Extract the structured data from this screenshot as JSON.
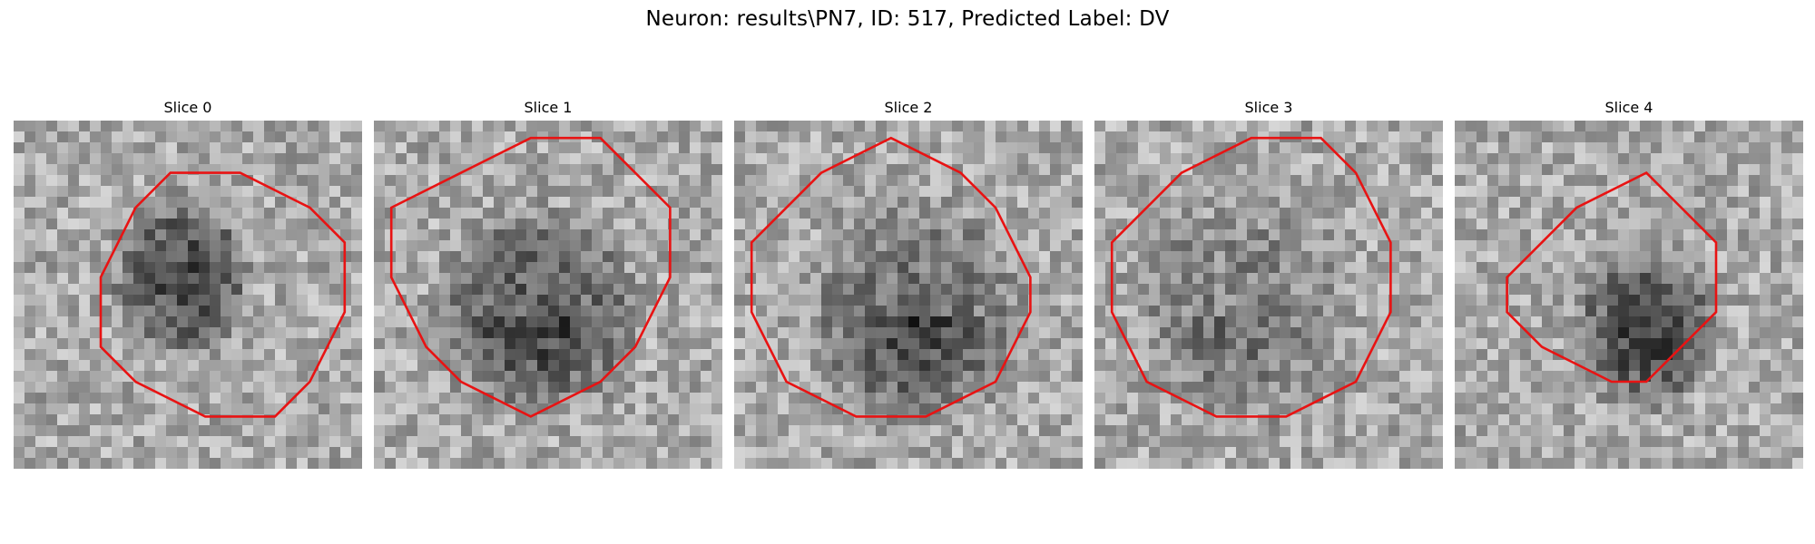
{
  "figure": {
    "title": "Neuron: results\\PN7, ID: 517, Predicted Label: DV",
    "contour_color": "#e81313"
  },
  "panels": [
    {
      "title": "Slice 0",
      "contour": [
        [
          4.5,
          1.5
        ],
        [
          6.5,
          1.5
        ],
        [
          8.5,
          2.5
        ],
        [
          9.5,
          3.5
        ],
        [
          9.5,
          5.5
        ],
        [
          8.5,
          7.5
        ],
        [
          7.5,
          8.5
        ],
        [
          5.5,
          8.5
        ],
        [
          3.5,
          7.5
        ],
        [
          2.5,
          6.5
        ],
        [
          2.5,
          4.5
        ],
        [
          3.5,
          2.5
        ]
      ]
    },
    {
      "title": "Slice 1",
      "contour": [
        [
          4.5,
          0.5
        ],
        [
          6.5,
          0.5
        ],
        [
          8.5,
          2.5
        ],
        [
          8.5,
          4.5
        ],
        [
          7.5,
          6.5
        ],
        [
          6.5,
          7.5
        ],
        [
          4.5,
          8.5
        ],
        [
          2.5,
          7.5
        ],
        [
          1.5,
          6.5
        ],
        [
          0.5,
          4.5
        ],
        [
          0.5,
          2.5
        ],
        [
          2.5,
          1.5
        ]
      ]
    },
    {
      "title": "Slice 2",
      "contour": [
        [
          4.5,
          0.5
        ],
        [
          6.5,
          1.5
        ],
        [
          7.5,
          2.5
        ],
        [
          8.5,
          4.5
        ],
        [
          8.5,
          5.5
        ],
        [
          7.5,
          7.5
        ],
        [
          5.5,
          8.5
        ],
        [
          3.5,
          8.5
        ],
        [
          1.5,
          7.5
        ],
        [
          0.5,
          5.5
        ],
        [
          0.5,
          3.5
        ],
        [
          2.5,
          1.5
        ]
      ]
    },
    {
      "title": "Slice 3",
      "contour": [
        [
          4.5,
          0.5
        ],
        [
          6.5,
          0.5
        ],
        [
          7.5,
          1.5
        ],
        [
          8.5,
          3.5
        ],
        [
          8.5,
          5.5
        ],
        [
          7.5,
          7.5
        ],
        [
          5.5,
          8.5
        ],
        [
          3.5,
          8.5
        ],
        [
          1.5,
          7.5
        ],
        [
          0.5,
          5.5
        ],
        [
          0.5,
          3.5
        ],
        [
          2.5,
          1.5
        ]
      ]
    },
    {
      "title": "Slice 4",
      "contour": [
        [
          5.5,
          1.5
        ],
        [
          6.5,
          2.5
        ],
        [
          7.5,
          3.5
        ],
        [
          7.5,
          5.5
        ],
        [
          6.5,
          6.5
        ],
        [
          5.5,
          7.5
        ],
        [
          4.5,
          7.5
        ],
        [
          2.5,
          6.5
        ],
        [
          1.5,
          5.5
        ],
        [
          1.5,
          4.5
        ],
        [
          2.5,
          3.5
        ],
        [
          3.5,
          2.5
        ]
      ]
    }
  ]
}
